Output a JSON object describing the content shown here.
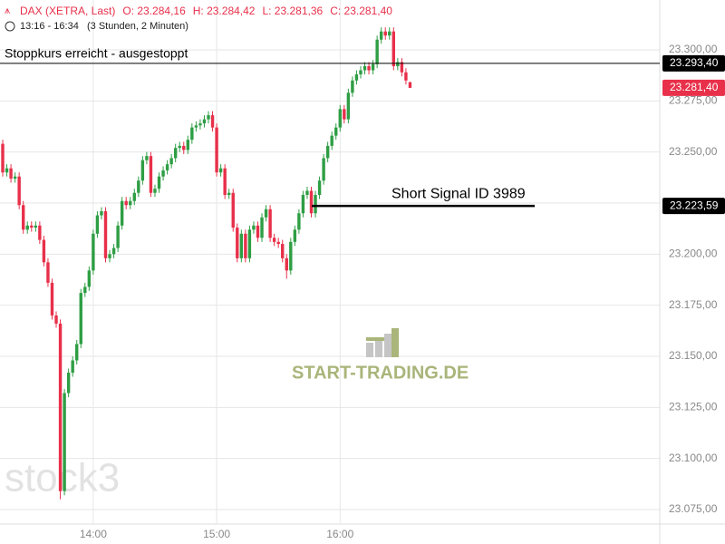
{
  "chart_data": {
    "type": "candlestick",
    "header": {
      "title": "DAX (XETRA, Last)",
      "ohlc": [
        "O: 23.284,16",
        "H: 23.284,42",
        "L: 23.281,36",
        "C: 23.281,40"
      ],
      "range": "13:16 - 16:34",
      "duration": "(3 Stunden, 2 Minuten)"
    },
    "categories": [
      null,
      null,
      null,
      null,
      null,
      null,
      null,
      null,
      null,
      null,
      null,
      null,
      null,
      null,
      null,
      null,
      null,
      null,
      null,
      null,
      null,
      null,
      "14:00",
      null,
      null,
      null,
      null,
      null,
      null,
      null,
      null,
      null,
      null,
      null,
      null,
      null,
      null,
      null,
      null,
      null,
      null,
      null,
      null,
      null,
      null,
      null,
      null,
      null,
      null,
      null,
      null,
      null,
      "15:00",
      null,
      null,
      null,
      null,
      null,
      null,
      null,
      null,
      null,
      null,
      null,
      null,
      null,
      null,
      null,
      null,
      null,
      null,
      null,
      null,
      null,
      null,
      null,
      null,
      null,
      null,
      null,
      null,
      null,
      "16:00",
      null,
      null,
      null,
      null,
      null,
      null,
      null,
      null,
      null,
      null,
      null,
      null,
      null,
      null,
      null,
      null,
      null
    ],
    "open": [
      23254,
      23240,
      23242,
      23237,
      23238,
      23224,
      23212,
      23214,
      23213,
      23214,
      23207,
      23196,
      23186,
      23170,
      23166,
      23084,
      23132,
      23142,
      23148,
      23156,
      23181,
      23184,
      23192,
      23210,
      23219,
      23221,
      23198,
      23200,
      23203,
      23214,
      23226,
      23224,
      23226,
      23230,
      23236,
      23246,
      23248,
      23230,
      23232,
      23238,
      23241,
      23244,
      23247,
      23252,
      23253,
      23251,
      23256,
      23262,
      23263,
      23264,
      23266,
      23268,
      23262,
      23240,
      23242,
      23229,
      23230,
      23213,
      23198,
      23210,
      23198,
      23212,
      23214,
      23208,
      23218,
      23222,
      23208,
      23206,
      23205,
      23198,
      23192,
      23206,
      23212,
      23220,
      23229,
      23231,
      23220,
      23229,
      23236,
      23247,
      23253,
      23258,
      23262,
      23271,
      23266,
      23279,
      23285,
      23288,
      23290,
      23292,
      23290,
      23293,
      23305,
      23309,
      23307,
      23309,
      23292,
      23294,
      23289,
      23284.16
    ],
    "high": [
      23256,
      23244,
      23244,
      23240,
      23240,
      23226,
      23216,
      23216,
      23216,
      23216,
      23209,
      23198,
      23188,
      23172,
      23168,
      23134,
      23144,
      23150,
      23158,
      23183,
      23186,
      23194,
      23212,
      23221,
      23223,
      23223,
      23202,
      23205,
      23216,
      23228,
      23228,
      23228,
      23232,
      23238,
      23248,
      23250,
      23250,
      23234,
      23240,
      23243,
      23246,
      23249,
      23254,
      23255,
      23255,
      23258,
      23264,
      23265,
      23266,
      23268,
      23270,
      23270,
      23264,
      23244,
      23244,
      23232,
      23232,
      23215,
      23212,
      23212,
      23214,
      23216,
      23216,
      23220,
      23224,
      23224,
      23210,
      23208,
      23207,
      23200,
      23208,
      23214,
      23222,
      23231,
      23233,
      23233,
      23231,
      23238,
      23249,
      23255,
      23260,
      23264,
      23273,
      23273,
      23281,
      23287,
      23290,
      23292,
      23294,
      23294,
      23295,
      23307,
      23311,
      23311,
      23311,
      23311,
      23296,
      23296,
      23291,
      23284.42
    ],
    "low": [
      23238,
      23238,
      23235,
      23235,
      23222,
      23210,
      23210,
      23211,
      23211,
      23205,
      23194,
      23184,
      23168,
      23164,
      23080,
      23082,
      23130,
      23140,
      23146,
      23154,
      23179,
      23182,
      23190,
      23208,
      23217,
      23196,
      23196,
      23198,
      23201,
      23212,
      23222,
      23222,
      23224,
      23228,
      23234,
      23244,
      23228,
      23228,
      23230,
      23236,
      23239,
      23242,
      23245,
      23250,
      23249,
      23249,
      23254,
      23260,
      23261,
      23262,
      23264,
      23260,
      23238,
      23238,
      23227,
      23227,
      23211,
      23196,
      23196,
      23196,
      23196,
      23210,
      23206,
      23206,
      23216,
      23206,
      23204,
      23203,
      23196,
      23188,
      23190,
      23204,
      23210,
      23218,
      23227,
      23218,
      23218,
      23227,
      23234,
      23245,
      23251,
      23256,
      23260,
      23264,
      23264,
      23277,
      23283,
      23286,
      23288,
      23288,
      23288,
      23291,
      23303,
      23305,
      23305,
      23290,
      23290,
      23287,
      23283,
      23281.36
    ],
    "close": [
      23240,
      23242,
      23237,
      23238,
      23224,
      23212,
      23214,
      23213,
      23214,
      23207,
      23196,
      23186,
      23170,
      23166,
      23084,
      23132,
      23142,
      23148,
      23156,
      23181,
      23184,
      23192,
      23210,
      23219,
      23221,
      23198,
      23200,
      23203,
      23214,
      23226,
      23224,
      23226,
      23230,
      23236,
      23246,
      23248,
      23230,
      23232,
      23238,
      23241,
      23244,
      23247,
      23252,
      23253,
      23251,
      23256,
      23262,
      23263,
      23264,
      23266,
      23268,
      23262,
      23240,
      23242,
      23229,
      23230,
      23213,
      23198,
      23210,
      23198,
      23212,
      23214,
      23208,
      23218,
      23222,
      23208,
      23206,
      23205,
      23198,
      23192,
      23206,
      23212,
      23220,
      23229,
      23231,
      23220,
      23229,
      23236,
      23247,
      23253,
      23258,
      23262,
      23271,
      23266,
      23279,
      23285,
      23288,
      23290,
      23292,
      23290,
      23293,
      23305,
      23309,
      23307,
      23309,
      23292,
      23294,
      23289,
      23285,
      23281.4
    ],
    "up_color": "#2e9e44",
    "down_color": "#e8304a",
    "ylim": [
      23067.9,
      23324.4
    ],
    "yticks": [
      {
        "value": 23075,
        "label": "23.075,00"
      },
      {
        "value": 23100,
        "label": "23.100,00"
      },
      {
        "value": 23125,
        "label": "23.125,00"
      },
      {
        "value": 23150,
        "label": "23.150,00"
      },
      {
        "value": 23175,
        "label": "23.175,00"
      },
      {
        "value": 23200,
        "label": "23.200,00"
      },
      {
        "value": 23225,
        "label": "23.225,00"
      },
      {
        "value": 23250,
        "label": "23.250,00"
      },
      {
        "value": 23275,
        "label": "23.275,00"
      },
      {
        "value": 23300,
        "label": "23.300,00"
      }
    ],
    "grid": true,
    "stop_line": {
      "text": "Stoppkurs erreicht - ausgestoppt",
      "value": 23293.4,
      "label": "23.293,40"
    },
    "signal_line": {
      "text": "Short Signal  ID 3989",
      "value": 23223.59,
      "label": "23.223,59"
    },
    "last_price": {
      "value": 23281.4,
      "label": "23.281,40"
    },
    "watermarks": [
      "stock3",
      "START-TRADING.DE"
    ]
  }
}
